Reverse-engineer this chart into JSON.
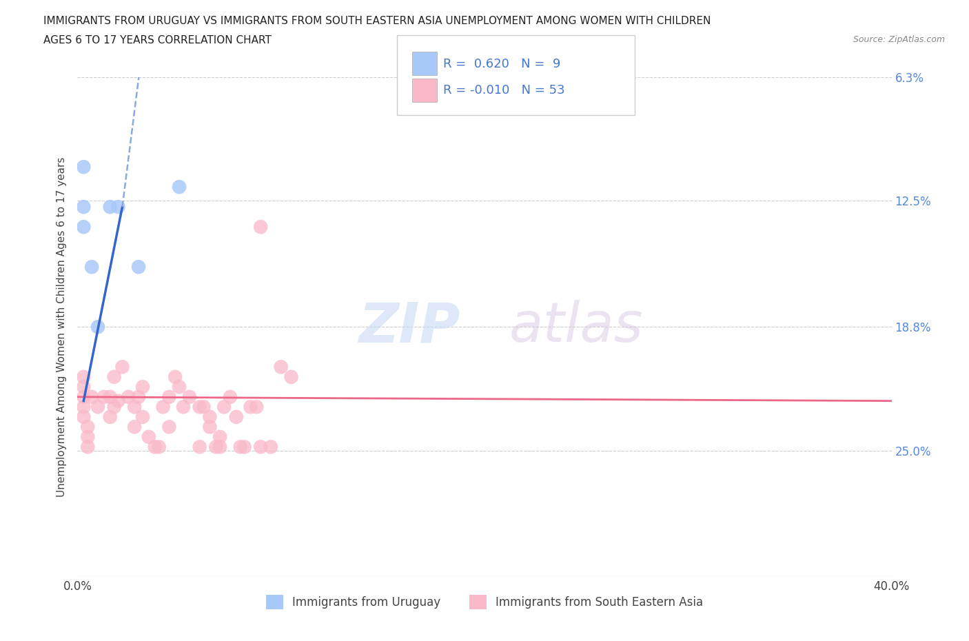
{
  "title_line1": "IMMIGRANTS FROM URUGUAY VS IMMIGRANTS FROM SOUTH EASTERN ASIA UNEMPLOYMENT AMONG WOMEN WITH CHILDREN",
  "title_line2": "AGES 6 TO 17 YEARS CORRELATION CHART",
  "source": "Source: ZipAtlas.com",
  "ylabel": "Unemployment Among Women with Children Ages 6 to 17 years",
  "xlim": [
    0.0,
    0.4
  ],
  "ylim": [
    0.0,
    0.25
  ],
  "ytick_values": [
    0.063,
    0.125,
    0.188,
    0.25
  ],
  "right_ytick_labels": [
    "25.0%",
    "18.8%",
    "12.5%",
    "6.3%"
  ],
  "watermark_zip": "ZIP",
  "watermark_atlas": "atlas",
  "color_uruguay": "#a8c8f8",
  "color_sea": "#f9b8c8",
  "color_line_uruguay": "#3366cc",
  "color_line_sea": "#ee6688",
  "color_dashed_uruguay": "#88aadd",
  "legend_text1": "R =  0.620   N =  9",
  "legend_text2": "R = -0.010   N = 53",
  "bottom_label1": "Immigrants from Uruguay",
  "bottom_label2": "Immigrants from South Eastern Asia",
  "uruguay_x": [
    0.003,
    0.003,
    0.003,
    0.003,
    0.003,
    0.005,
    0.005,
    0.005,
    0.007,
    0.01,
    0.013,
    0.016,
    0.016,
    0.018,
    0.018,
    0.02,
    0.022,
    0.025,
    0.028,
    0.028,
    0.03,
    0.032,
    0.032,
    0.035,
    0.038,
    0.04,
    0.042,
    0.045,
    0.045,
    0.048,
    0.05,
    0.052,
    0.055,
    0.06,
    0.06,
    0.062,
    0.065,
    0.065,
    0.068,
    0.07,
    0.07,
    0.072,
    0.075,
    0.078,
    0.08,
    0.082,
    0.085,
    0.088,
    0.09,
    0.09,
    0.095,
    0.1,
    0.105
  ],
  "uruguay_y": [
    0.09,
    0.085,
    0.1,
    0.095,
    0.08,
    0.075,
    0.07,
    0.065,
    0.09,
    0.085,
    0.09,
    0.09,
    0.08,
    0.1,
    0.085,
    0.088,
    0.105,
    0.09,
    0.085,
    0.075,
    0.09,
    0.095,
    0.08,
    0.07,
    0.065,
    0.065,
    0.085,
    0.09,
    0.075,
    0.1,
    0.095,
    0.085,
    0.09,
    0.065,
    0.085,
    0.085,
    0.08,
    0.075,
    0.065,
    0.07,
    0.065,
    0.085,
    0.09,
    0.08,
    0.065,
    0.065,
    0.085,
    0.085,
    0.175,
    0.065,
    0.065,
    0.105,
    0.1
  ],
  "uru_x": [
    0.003,
    0.003,
    0.003,
    0.007,
    0.01,
    0.016,
    0.02,
    0.03,
    0.05
  ],
  "uru_y": [
    0.205,
    0.185,
    0.175,
    0.155,
    0.125,
    0.185,
    0.185,
    0.155,
    0.195
  ]
}
